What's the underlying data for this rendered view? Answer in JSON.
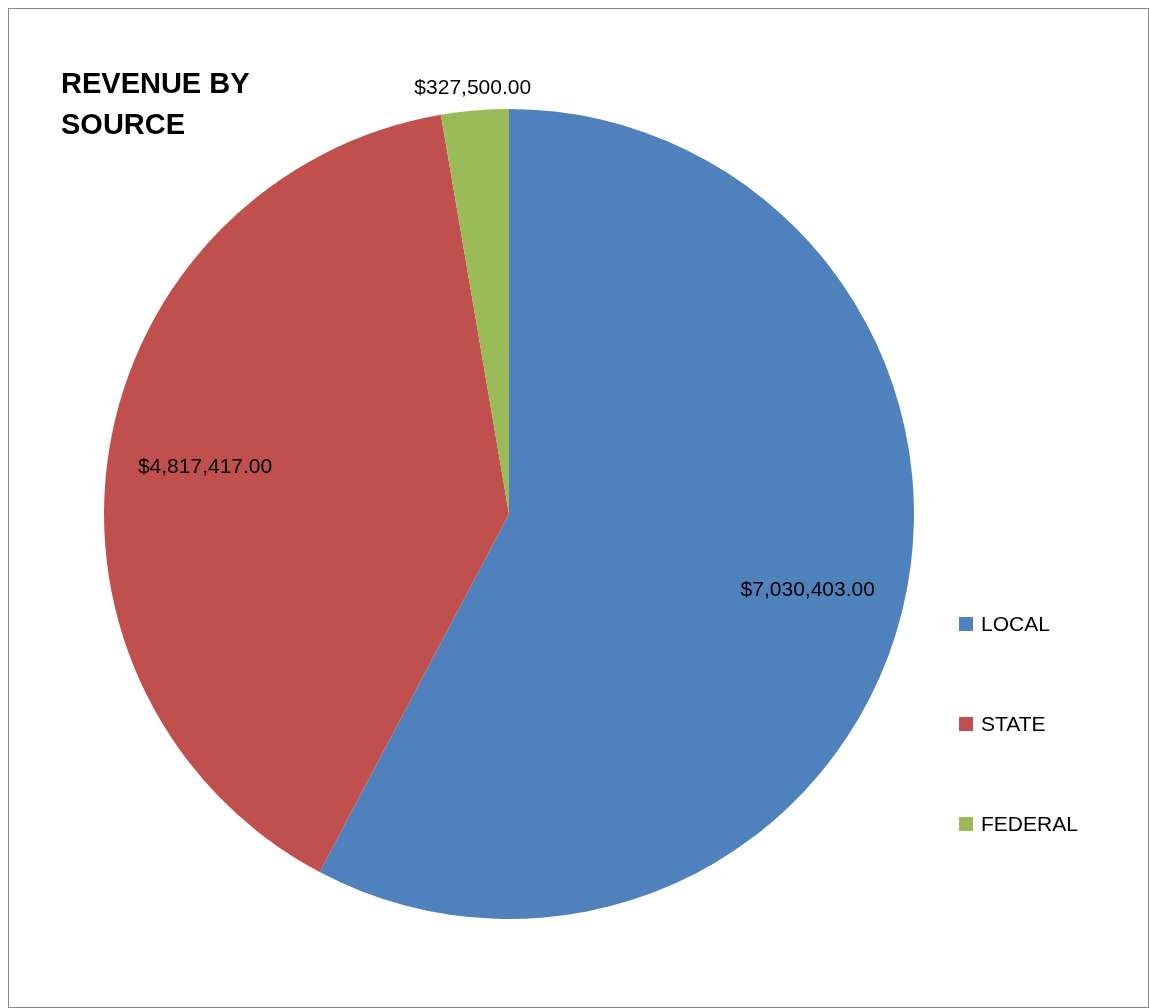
{
  "chart_data": {
    "type": "pie",
    "title": "REVENUE BY SOURCE",
    "categories": [
      "LOCAL",
      "STATE",
      "FEDERAL"
    ],
    "values": [
      7030403,
      4817417,
      327500
    ],
    "colors": [
      "#4f81bd",
      "#c0504d",
      "#9bbb59"
    ],
    "value_labels": [
      "$7,030,403.00",
      "$4,817,417.00",
      "$327,500.00"
    ],
    "legend": "right"
  }
}
